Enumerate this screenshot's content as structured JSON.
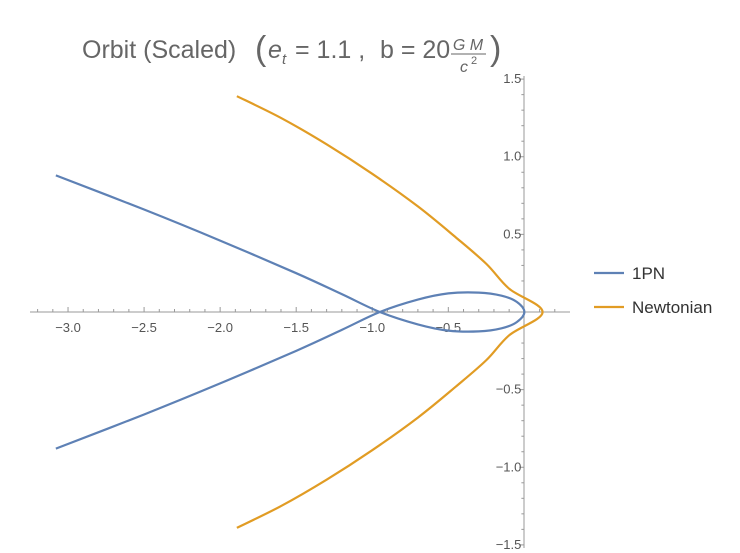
{
  "chart_data": {
    "type": "line",
    "title": {
      "main": "Orbit (Scaled)",
      "e_symbol": "e",
      "e_sub": "t",
      "e_value": "= 1.1 ,",
      "b_text": "b = 20",
      "numerator": "G M",
      "denominator": "c",
      "denominator_exp": "2"
    },
    "xlabel": "",
    "ylabel": "",
    "xlim": [
      -3.25,
      0.3
    ],
    "ylim": [
      -1.52,
      1.52
    ],
    "x_ticks": [
      {
        "value": -3.0,
        "label": "−3.0"
      },
      {
        "value": -2.5,
        "label": "−2.5"
      },
      {
        "value": -2.0,
        "label": "−2.0"
      },
      {
        "value": -1.5,
        "label": "−1.5"
      },
      {
        "value": -1.0,
        "label": "−1.0"
      },
      {
        "value": -0.5,
        "label": "−0.5"
      }
    ],
    "y_ticks": [
      {
        "value": 1.5,
        "label": "1.5"
      },
      {
        "value": 1.0,
        "label": "1.0"
      },
      {
        "value": 0.5,
        "label": "0.5"
      },
      {
        "value": -0.5,
        "label": "−0.5"
      },
      {
        "value": -1.0,
        "label": "−1.0"
      },
      {
        "value": -1.5,
        "label": "−1.5"
      }
    ],
    "grid": false,
    "legend_position": "right",
    "series": [
      {
        "name": "1PN",
        "color": "#5e81b5",
        "points": [
          [
            -3.08,
            0.88
          ],
          [
            -2.5,
            0.66
          ],
          [
            -2.0,
            0.46
          ],
          [
            -1.5,
            0.25
          ],
          [
            -1.2,
            0.115
          ],
          [
            -0.95,
            0.0
          ],
          [
            -0.7,
            -0.08
          ],
          [
            -0.5,
            -0.12
          ],
          [
            -0.3,
            -0.125
          ],
          [
            -0.15,
            -0.105
          ],
          [
            -0.05,
            -0.065
          ],
          [
            0.0,
            0.0
          ],
          [
            -0.05,
            0.065
          ],
          [
            -0.15,
            0.105
          ],
          [
            -0.3,
            0.125
          ],
          [
            -0.5,
            0.12
          ],
          [
            -0.7,
            0.08
          ],
          [
            -0.95,
            0.0
          ],
          [
            -1.2,
            -0.115
          ],
          [
            -1.5,
            -0.25
          ],
          [
            -2.0,
            -0.46
          ],
          [
            -2.5,
            -0.66
          ],
          [
            -3.08,
            -0.88
          ]
        ]
      },
      {
        "name": "Newtonian",
        "color": "#e19c24",
        "points": [
          [
            -1.89,
            1.39
          ],
          [
            -1.6,
            1.25
          ],
          [
            -1.3,
            1.08
          ],
          [
            -1.0,
            0.89
          ],
          [
            -0.7,
            0.68
          ],
          [
            -0.45,
            0.48
          ],
          [
            -0.25,
            0.31
          ],
          [
            -0.1,
            0.15
          ],
          [
            0.12,
            0.0
          ],
          [
            -0.1,
            -0.15
          ],
          [
            -0.25,
            -0.31
          ],
          [
            -0.45,
            -0.48
          ],
          [
            -0.7,
            -0.68
          ],
          [
            -1.0,
            -0.89
          ],
          [
            -1.3,
            -1.08
          ],
          [
            -1.6,
            -1.25
          ],
          [
            -1.89,
            -1.39
          ]
        ]
      }
    ]
  }
}
